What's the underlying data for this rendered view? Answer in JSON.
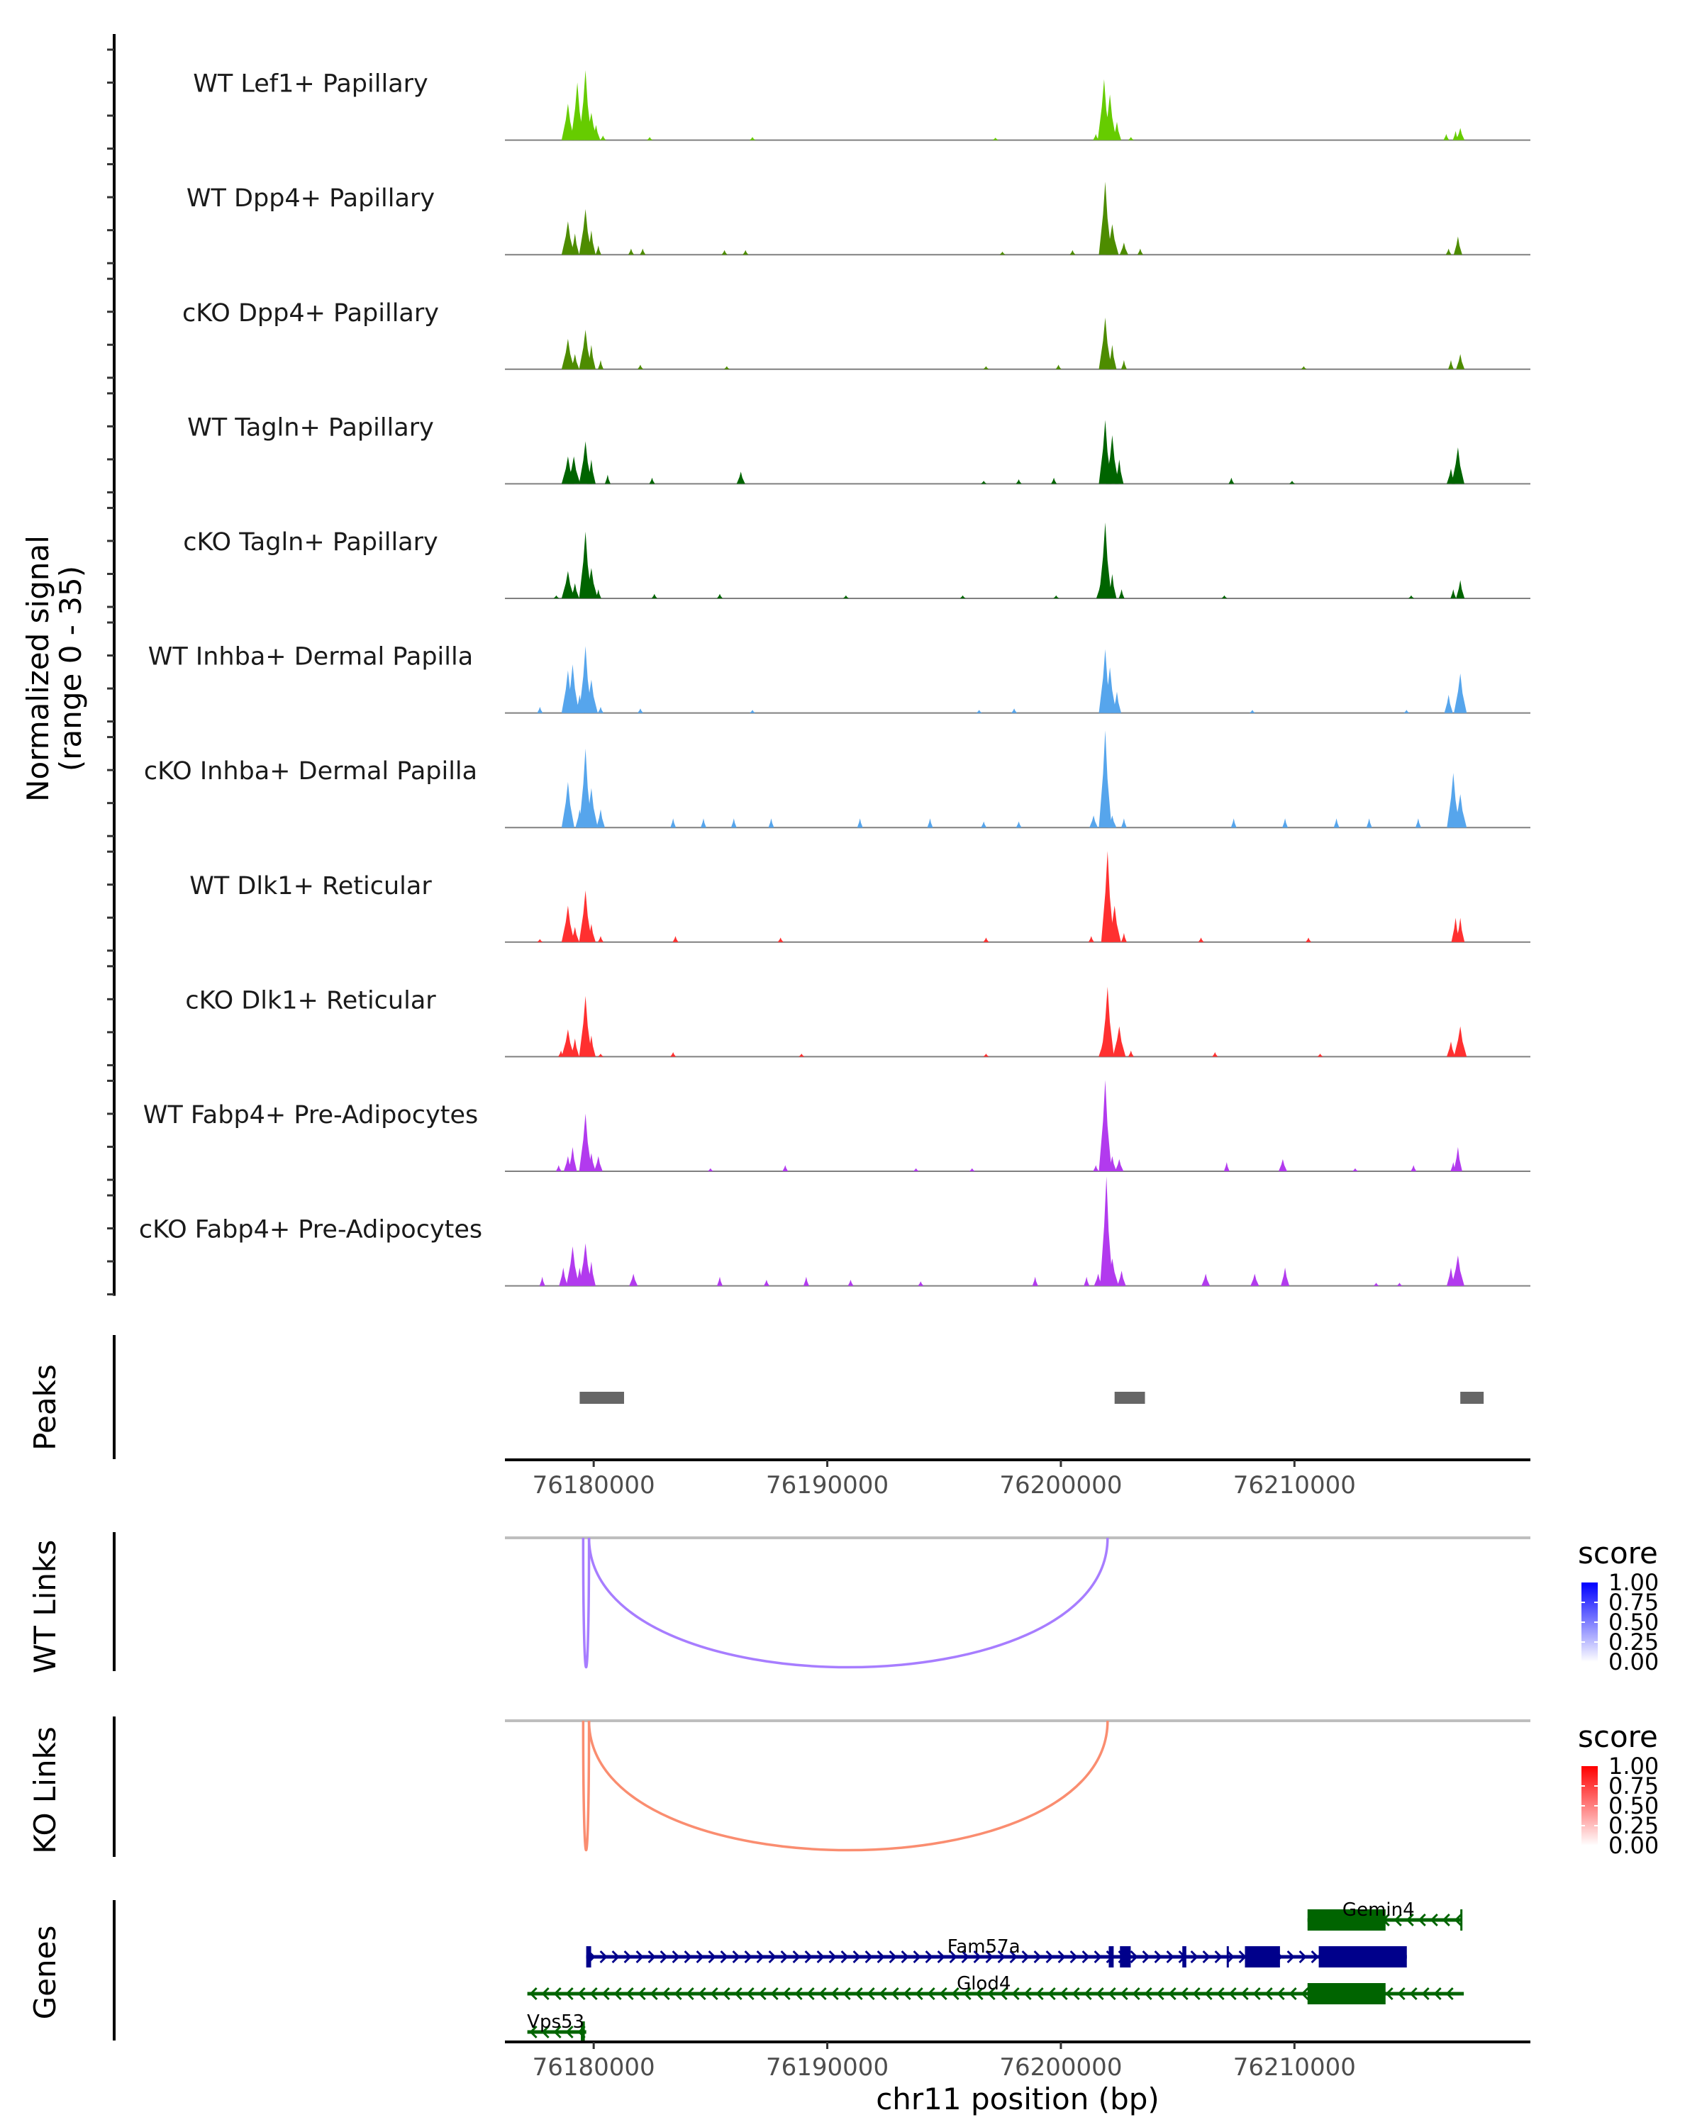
{
  "chart_data": {
    "type": "area",
    "title": "",
    "xlabel": "chr11 position (bp)",
    "ylabel": "Normalized signal\n(range 0 - 35)",
    "ylabel_lines": [
      "Normalized signal",
      "(range 0 - 35)"
    ],
    "ylim": [
      0,
      35
    ],
    "xlim": [
      76176200,
      76220100
    ],
    "x_ticks": [
      76180000,
      76190000,
      76200000,
      76210000
    ],
    "x_tick_labels": [
      "76180000",
      "76190000",
      "76200000",
      "76210000"
    ],
    "coverage_tracks": [
      {
        "name": "WT Lef1+ Papillary",
        "color": "#66CC00",
        "peaks": [
          [
            76178900,
            12
          ],
          [
            76179300,
            19
          ],
          [
            76179650,
            23
          ],
          [
            76179900,
            9
          ],
          [
            76180100,
            5
          ],
          [
            76180400,
            1.5
          ],
          [
            76182400,
            1
          ],
          [
            76186800,
            1
          ],
          [
            76197200,
            0.8
          ],
          [
            76201500,
            2
          ],
          [
            76201850,
            20
          ],
          [
            76202100,
            15
          ],
          [
            76202400,
            6
          ],
          [
            76203000,
            1
          ],
          [
            76216500,
            2
          ],
          [
            76216900,
            3
          ],
          [
            76217100,
            4
          ]
        ]
      },
      {
        "name": "WT Dpp4+ Papillary",
        "color": "#4D8C00",
        "peaks": [
          [
            76178900,
            11
          ],
          [
            76179200,
            7
          ],
          [
            76179650,
            15
          ],
          [
            76179900,
            8
          ],
          [
            76180200,
            3
          ],
          [
            76181600,
            2
          ],
          [
            76182100,
            2
          ],
          [
            76185600,
            1.5
          ],
          [
            76186500,
            1.5
          ],
          [
            76197500,
            1
          ],
          [
            76200500,
            1.5
          ],
          [
            76201900,
            24
          ],
          [
            76202200,
            10
          ],
          [
            76202700,
            4
          ],
          [
            76203400,
            2
          ],
          [
            76216600,
            2
          ],
          [
            76217000,
            6
          ]
        ]
      },
      {
        "name": "cKO Dpp4+ Papillary",
        "color": "#4D8C00",
        "peaks": [
          [
            76178900,
            10
          ],
          [
            76179200,
            5
          ],
          [
            76179650,
            13
          ],
          [
            76179900,
            8
          ],
          [
            76180300,
            3
          ],
          [
            76182000,
            1.5
          ],
          [
            76185700,
            1
          ],
          [
            76196800,
            1
          ],
          [
            76199900,
            1.5
          ],
          [
            76201900,
            17
          ],
          [
            76202200,
            8
          ],
          [
            76202700,
            3
          ],
          [
            76210400,
            1
          ],
          [
            76216700,
            3
          ],
          [
            76217100,
            5
          ]
        ]
      },
      {
        "name": "WT Tagln+ Papillary",
        "color": "#006400",
        "peaks": [
          [
            76178900,
            9
          ],
          [
            76179150,
            9
          ],
          [
            76179650,
            14
          ],
          [
            76179900,
            8
          ],
          [
            76180600,
            3
          ],
          [
            76182500,
            2
          ],
          [
            76186300,
            4
          ],
          [
            76196700,
            1
          ],
          [
            76198200,
            1.5
          ],
          [
            76199700,
            2
          ],
          [
            76201900,
            21
          ],
          [
            76202200,
            16
          ],
          [
            76202500,
            8
          ],
          [
            76207300,
            2
          ],
          [
            76209900,
            1
          ],
          [
            76216700,
            5
          ],
          [
            76217000,
            12
          ]
        ]
      },
      {
        "name": "cKO Tagln+ Papillary",
        "color": "#006400",
        "peaks": [
          [
            76178400,
            1
          ],
          [
            76178900,
            9
          ],
          [
            76179200,
            5
          ],
          [
            76179650,
            22
          ],
          [
            76179900,
            10
          ],
          [
            76180200,
            3
          ],
          [
            76182600,
            1.5
          ],
          [
            76185400,
            1.5
          ],
          [
            76190800,
            1
          ],
          [
            76195800,
            1
          ],
          [
            76199800,
            1
          ],
          [
            76201700,
            5
          ],
          [
            76201900,
            25
          ],
          [
            76202200,
            8
          ],
          [
            76202600,
            3
          ],
          [
            76207000,
            1
          ],
          [
            76215000,
            1
          ],
          [
            76216800,
            3
          ],
          [
            76217100,
            6
          ]
        ]
      },
      {
        "name": "WT Inhba+ Dermal Papilla",
        "color": "#56A5EC",
        "peaks": [
          [
            76177700,
            2
          ],
          [
            76178900,
            14
          ],
          [
            76179100,
            16
          ],
          [
            76179400,
            6
          ],
          [
            76179650,
            22
          ],
          [
            76179900,
            11
          ],
          [
            76180300,
            2
          ],
          [
            76182000,
            1.5
          ],
          [
            76186800,
            1
          ],
          [
            76196500,
            1
          ],
          [
            76198000,
            1.5
          ],
          [
            76201900,
            21
          ],
          [
            76202100,
            15
          ],
          [
            76202400,
            7
          ],
          [
            76208200,
            1
          ],
          [
            76214800,
            1
          ],
          [
            76216600,
            6
          ],
          [
            76217100,
            13
          ]
        ]
      },
      {
        "name": "cKO Inhba+ Dermal Papilla",
        "color": "#56A5EC",
        "peaks": [
          [
            76178900,
            15
          ],
          [
            76179400,
            6
          ],
          [
            76179650,
            26
          ],
          [
            76179900,
            13
          ],
          [
            76180300,
            6
          ],
          [
            76183400,
            3
          ],
          [
            76184700,
            3
          ],
          [
            76186000,
            3
          ],
          [
            76187600,
            3
          ],
          [
            76191400,
            3
          ],
          [
            76194400,
            3
          ],
          [
            76196700,
            2
          ],
          [
            76198200,
            2
          ],
          [
            76201400,
            4
          ],
          [
            76201900,
            32
          ],
          [
            76202200,
            4
          ],
          [
            76202700,
            3
          ],
          [
            76207400,
            3
          ],
          [
            76209600,
            3
          ],
          [
            76211800,
            3
          ],
          [
            76213200,
            3
          ],
          [
            76215300,
            3
          ],
          [
            76216800,
            18
          ],
          [
            76217100,
            11
          ]
        ]
      },
      {
        "name": "WT Dlk1+ Reticular",
        "color": "#FF3030",
        "peaks": [
          [
            76177700,
            1
          ],
          [
            76178900,
            12
          ],
          [
            76179200,
            5
          ],
          [
            76179650,
            17
          ],
          [
            76179900,
            6
          ],
          [
            76180300,
            2
          ],
          [
            76183500,
            2
          ],
          [
            76188000,
            1.5
          ],
          [
            76196800,
            1.5
          ],
          [
            76201300,
            2
          ],
          [
            76202000,
            30
          ],
          [
            76202300,
            12
          ],
          [
            76202700,
            3
          ],
          [
            76206000,
            1.5
          ],
          [
            76210600,
            1.5
          ],
          [
            76216900,
            8
          ],
          [
            76217100,
            8
          ]
        ]
      },
      {
        "name": "cKO Dlk1+ Reticular",
        "color": "#FF3030",
        "peaks": [
          [
            76178600,
            2
          ],
          [
            76178900,
            9
          ],
          [
            76179200,
            6
          ],
          [
            76179650,
            20
          ],
          [
            76179900,
            7
          ],
          [
            76180300,
            1
          ],
          [
            76183400,
            1.5
          ],
          [
            76188900,
            1
          ],
          [
            76196800,
            1
          ],
          [
            76201800,
            5
          ],
          [
            76202000,
            23
          ],
          [
            76202500,
            10
          ],
          [
            76203000,
            2
          ],
          [
            76206600,
            1.5
          ],
          [
            76211100,
            1
          ],
          [
            76216700,
            5
          ],
          [
            76217100,
            10
          ]
        ]
      },
      {
        "name": "WT Fabp4+ Pre-Adipocytes",
        "color": "#B23AEE",
        "peaks": [
          [
            76178500,
            2
          ],
          [
            76178900,
            5
          ],
          [
            76179100,
            8
          ],
          [
            76179650,
            19
          ],
          [
            76179900,
            6
          ],
          [
            76180200,
            5
          ],
          [
            76185000,
            1
          ],
          [
            76188200,
            2
          ],
          [
            76193800,
            1
          ],
          [
            76196200,
            1
          ],
          [
            76201500,
            2
          ],
          [
            76201900,
            30
          ],
          [
            76202200,
            5
          ],
          [
            76202500,
            4
          ],
          [
            76207100,
            3
          ],
          [
            76209500,
            4
          ],
          [
            76212600,
            1
          ],
          [
            76215100,
            2
          ],
          [
            76216800,
            3
          ],
          [
            76217000,
            8
          ]
        ]
      },
      {
        "name": "cKO Fabp4+ Pre-Adipocytes",
        "color": "#B23AEE",
        "peaks": [
          [
            76177800,
            3
          ],
          [
            76178700,
            6
          ],
          [
            76179100,
            13
          ],
          [
            76179400,
            6
          ],
          [
            76179650,
            14
          ],
          [
            76179900,
            8
          ],
          [
            76181700,
            4
          ],
          [
            76185400,
            3
          ],
          [
            76187400,
            2
          ],
          [
            76189100,
            3
          ],
          [
            76191000,
            2
          ],
          [
            76194000,
            1.5
          ],
          [
            76198900,
            3
          ],
          [
            76201100,
            3
          ],
          [
            76201600,
            4
          ],
          [
            76201950,
            36
          ],
          [
            76202200,
            9
          ],
          [
            76202600,
            5
          ],
          [
            76206200,
            4
          ],
          [
            76208300,
            4
          ],
          [
            76209600,
            6
          ],
          [
            76213500,
            1
          ],
          [
            76214500,
            1
          ],
          [
            76216700,
            6
          ],
          [
            76217000,
            10
          ]
        ]
      }
    ],
    "peaks_track": {
      "label": "Peaks",
      "color": "#666666",
      "regions": [
        [
          76179400,
          76181300
        ],
        [
          76202300,
          76203600
        ],
        [
          76217100,
          76218100
        ]
      ]
    },
    "link_tracks": [
      {
        "label": "WT Links",
        "color": "#A77DFF",
        "legend": {
          "title": "score",
          "low": "#FFFFFF",
          "high": "#0000FF",
          "ticks": [
            "1.00",
            "0.75",
            "0.50",
            "0.25",
            "0.00"
          ]
        },
        "links": [
          {
            "start": 76179550,
            "end": 76179800,
            "score": 0.5
          },
          {
            "start": 76179800,
            "end": 76202000,
            "score": 0.5
          }
        ]
      },
      {
        "label": "KO Links",
        "color": "#FA8D70",
        "legend": {
          "title": "score",
          "low": "#FFFFFF",
          "high": "#FF0000",
          "ticks": [
            "1.00",
            "0.75",
            "0.50",
            "0.25",
            "0.00"
          ]
        },
        "links": [
          {
            "start": 76179550,
            "end": 76179800,
            "score": 0.5
          },
          {
            "start": 76179800,
            "end": 76202000,
            "score": 0.5
          }
        ]
      }
    ],
    "genes_track": {
      "label": "Genes",
      "genes": [
        {
          "name": "Gemin4",
          "strand": "-",
          "color": "#006400",
          "row": 0,
          "start": 76210560,
          "end": 76217170,
          "exons": [
            [
              76210560,
              76213900
            ],
            [
              76217100,
              76217170
            ]
          ]
        },
        {
          "name": "Fam57a",
          "strand": "+",
          "color": "#00008B",
          "row": 1,
          "start": 76179680,
          "end": 76214810,
          "exons": [
            [
              76179680,
              76179890
            ],
            [
              76202050,
              76202260
            ],
            [
              76202530,
              76202990
            ],
            [
              76205200,
              76205370
            ],
            [
              76207100,
              76207160
            ],
            [
              76207880,
              76209380
            ],
            [
              76211040,
              76214810
            ]
          ]
        },
        {
          "name": "Glod4",
          "strand": "-",
          "color": "#006400",
          "row": 2,
          "start": 76177160,
          "end": 76217250,
          "exons": [
            [
              76210560,
              76213900
            ]
          ]
        },
        {
          "name": "Vps53",
          "strand": "-",
          "color": "#006400",
          "row": 3,
          "start": 76177160,
          "end": 76179680,
          "exons": [
            [
              76179450,
              76179620
            ]
          ]
        }
      ]
    }
  }
}
